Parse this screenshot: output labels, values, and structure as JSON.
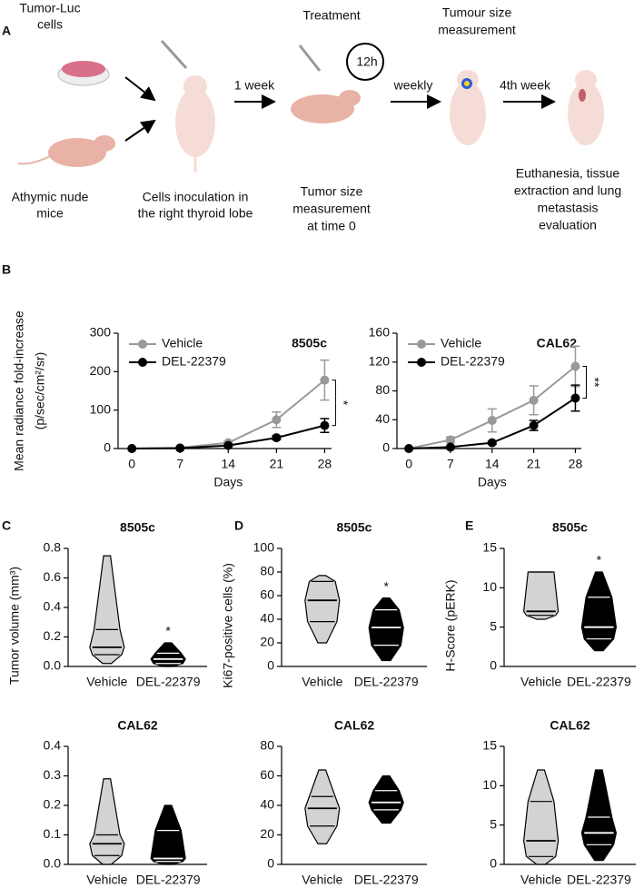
{
  "panel_labels": [
    "A",
    "B",
    "C",
    "D",
    "E"
  ],
  "schematic": {
    "cells": [
      "Tumor-Luc",
      "cells"
    ],
    "mice": [
      "Athymic nude",
      "mice"
    ],
    "inoculation": [
      "Cells inoculation in",
      "the right thyroid lobe"
    ],
    "step1": "1 week",
    "treatment": "Treatment",
    "interval": "12h",
    "baseline": [
      "Tumor size",
      "measurement",
      "at time 0"
    ],
    "measurement": [
      "Tumour size",
      "measurement"
    ],
    "step2": "weekly",
    "step3": "4th week",
    "endpoint": [
      "Euthanesia, tissue",
      "extraction and lung",
      "metastasis",
      "evaluation"
    ]
  },
  "chart_data": [
    {
      "type": "line",
      "title": "8505c",
      "ylabel": [
        "Mean radiance fold-increase",
        "(p/sec/cm²/sr)"
      ],
      "xlabel": "Days",
      "x": [
        0,
        7,
        14,
        21,
        28
      ],
      "xlim": [
        -2,
        29
      ],
      "xticks": [
        0,
        7,
        14,
        21,
        28
      ],
      "ylim": [
        0,
        300
      ],
      "yticks": [
        0,
        100,
        200,
        300
      ],
      "series": [
        {
          "name": "Vehicle",
          "color": "#999999",
          "values": [
            0,
            2,
            15,
            75,
            178
          ],
          "errors": [
            0,
            1,
            4,
            20,
            52
          ]
        },
        {
          "name": "DEL-22379",
          "color": "#000000",
          "values": [
            0,
            1,
            8,
            28,
            60
          ],
          "errors": [
            0,
            1,
            2,
            5,
            18
          ]
        }
      ],
      "annotation": "*",
      "legend": "upper left"
    },
    {
      "type": "line",
      "title": "CAL62",
      "xlabel": "Days",
      "x": [
        0,
        7,
        14,
        21,
        28
      ],
      "xlim": [
        -2,
        29
      ],
      "xticks": [
        0,
        7,
        14,
        21,
        28
      ],
      "ylim": [
        0,
        160
      ],
      "yticks": [
        0,
        40,
        80,
        120,
        160
      ],
      "series": [
        {
          "name": "Vehicle",
          "color": "#999999",
          "values": [
            0,
            12,
            39,
            67,
            114
          ],
          "errors": [
            0,
            4,
            16,
            20,
            28
          ]
        },
        {
          "name": "DEL-22379",
          "color": "#000000",
          "values": [
            0,
            2,
            8,
            32,
            70
          ],
          "errors": [
            0,
            1,
            2,
            7,
            18
          ]
        }
      ],
      "annotation": "**",
      "legend": "upper left"
    },
    {
      "type": "violin",
      "title": "8505c",
      "ylabel": "Tumor volume (mm³)",
      "categories": [
        "Vehicle",
        "DEL-22379"
      ],
      "colors": [
        "#d3d3d3",
        "#000000"
      ],
      "line_colors": [
        "#000000",
        "#ffffff"
      ],
      "stats": [
        {
          "min": 0.02,
          "q1": 0.08,
          "median": 0.13,
          "q3": 0.25,
          "max": 0.75
        },
        {
          "min": 0.0,
          "q1": 0.02,
          "median": 0.05,
          "q3": 0.09,
          "max": 0.16
        }
      ],
      "ylim": [
        0,
        0.8
      ],
      "yticks": [
        {
          "value": 0,
          "label": "0.0"
        },
        0.2,
        0.4,
        0.6,
        0.8
      ],
      "annotation": "*"
    },
    {
      "type": "violin",
      "title": "CAL62",
      "categories": [
        "Vehicle",
        "DEL-22379"
      ],
      "colors": [
        "#d3d3d3",
        "#000000"
      ],
      "line_colors": [
        "#000000",
        "#ffffff"
      ],
      "stats": [
        {
          "min": 0.0,
          "q1": 0.03,
          "median": 0.07,
          "q3": 0.1,
          "max": 0.29
        },
        {
          "min": 0.0,
          "q1": 0.01,
          "median": 0.02,
          "q3": 0.115,
          "max": 0.2
        }
      ],
      "ylim": [
        0,
        0.4
      ],
      "yticks": [
        {
          "value": 0,
          "label": "0.0"
        },
        0.1,
        0.2,
        0.3,
        0.4
      ]
    },
    {
      "type": "violin",
      "title": "8505c",
      "ylabel": "Ki67-positive cells (%)",
      "categories": [
        "Vehicle",
        "DEL-22379"
      ],
      "colors": [
        "#d3d3d3",
        "#000000"
      ],
      "line_colors": [
        "#000000",
        "#ffffff"
      ],
      "stats": [
        {
          "min": 20,
          "q1": 38,
          "median": 56,
          "q3": 72,
          "max": 77
        },
        {
          "min": 5,
          "q1": 18,
          "median": 33,
          "q3": 48,
          "max": 58
        }
      ],
      "ylim": [
        0,
        100
      ],
      "yticks": [
        0,
        20,
        40,
        60,
        80,
        100
      ],
      "annotation": "*"
    },
    {
      "type": "violin",
      "title": "CAL62",
      "categories": [
        "Vehicle",
        "DEL-22379"
      ],
      "colors": [
        "#d3d3d3",
        "#000000"
      ],
      "line_colors": [
        "#000000",
        "#ffffff"
      ],
      "stats": [
        {
          "min": 14,
          "q1": 26,
          "median": 38,
          "q3": 46,
          "max": 64
        },
        {
          "min": 28,
          "q1": 37,
          "median": 42,
          "q3": 50,
          "max": 60
        }
      ],
      "ylim": [
        0,
        80
      ],
      "yticks": [
        0,
        20,
        40,
        60,
        80
      ]
    },
    {
      "type": "violin",
      "title": "8505c",
      "ylabel": "H-Score (pERK)",
      "categories": [
        "Vehicle",
        "DEL-22379"
      ],
      "colors": [
        "#d3d3d3",
        "#000000"
      ],
      "line_colors": [
        "#000000",
        "#ffffff"
      ],
      "stats": [
        {
          "min": 6,
          "q1": 6.5,
          "median": 7,
          "q3": 12,
          "max": 12
        },
        {
          "min": 2,
          "q1": 3.5,
          "median": 5,
          "q3": 8.8,
          "max": 12
        }
      ],
      "ylim": [
        0,
        15
      ],
      "yticks": [
        0,
        5,
        10,
        15
      ],
      "annotation": "*"
    },
    {
      "type": "violin",
      "title": "CAL62",
      "categories": [
        "Vehicle",
        "DEL-22379"
      ],
      "colors": [
        "#d3d3d3",
        "#000000"
      ],
      "line_colors": [
        "#000000",
        "#ffffff"
      ],
      "stats": [
        {
          "min": 0,
          "q1": 1,
          "median": 3,
          "q3": 8,
          "max": 12
        },
        {
          "min": 0.5,
          "q1": 2.5,
          "median": 4,
          "q3": 6,
          "max": 12
        }
      ],
      "ylim": [
        0,
        15
      ],
      "yticks": [
        0,
        5,
        10,
        15
      ]
    }
  ]
}
